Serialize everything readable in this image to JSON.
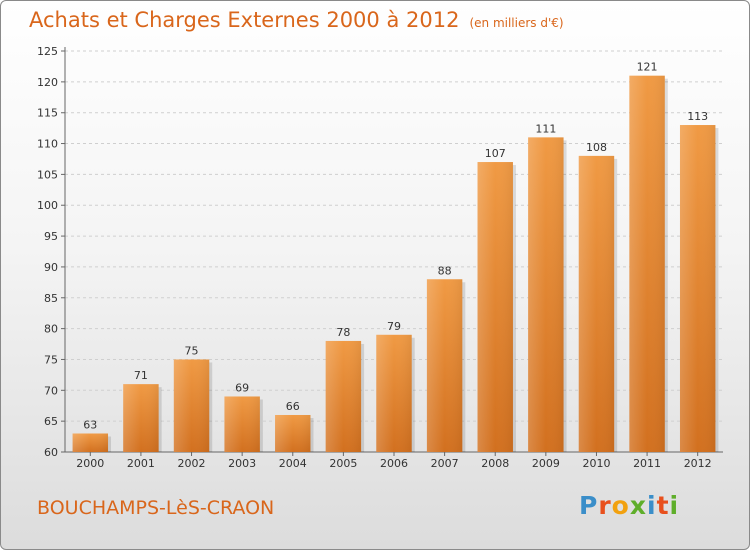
{
  "header": {
    "title": "Achats et Charges Externes 2000 à 2012",
    "unit": "(en milliers d'€)"
  },
  "footer": {
    "city": "BOUCHAMPS-LèS-CRAON",
    "logo_letters": [
      "P",
      "r",
      "o",
      "x",
      "i",
      "t",
      "i"
    ],
    "logo_colors": [
      "#3a8ec9",
      "#e8501d",
      "#f2a10f",
      "#5fae2a",
      "#3a8ec9",
      "#e8501d",
      "#5fae2a"
    ]
  },
  "chart_data": {
    "type": "bar",
    "categories": [
      "2000",
      "2001",
      "2002",
      "2003",
      "2004",
      "2005",
      "2006",
      "2007",
      "2008",
      "2009",
      "2010",
      "2011",
      "2012"
    ],
    "values": [
      63,
      71,
      75,
      69,
      66,
      78,
      79,
      88,
      107,
      111,
      108,
      121,
      113
    ],
    "yticks": [
      60,
      65,
      70,
      75,
      80,
      85,
      90,
      95,
      100,
      105,
      110,
      115,
      120,
      125
    ],
    "ylim": [
      60,
      125
    ],
    "grid": true,
    "bar_color": "#f09a44",
    "bar_color_dark": "#d2701f"
  }
}
